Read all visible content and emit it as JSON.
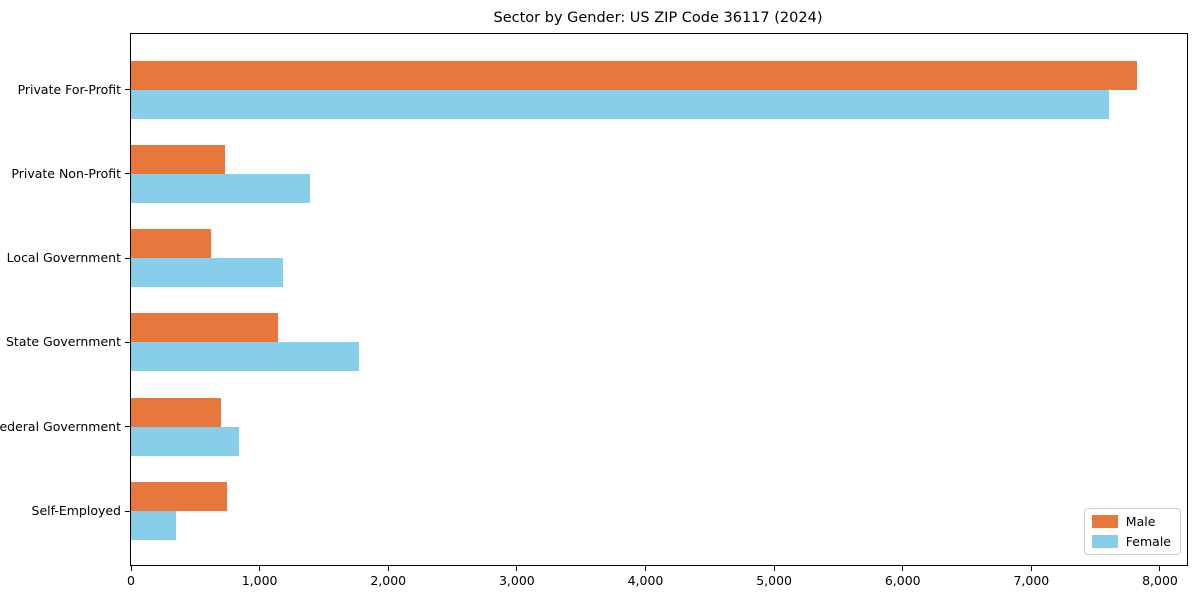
{
  "chart_data": {
    "type": "bar",
    "orientation": "horizontal",
    "title": "Sector by Gender: US ZIP Code 36117 (2024)",
    "categories": [
      "Private For-Profit",
      "Private Non-Profit",
      "Local Government",
      "State Government",
      "Federal Government",
      "Self-Employed"
    ],
    "series": [
      {
        "name": "Male",
        "color": "#e8773d",
        "values": [
          7820,
          730,
          620,
          1140,
          700,
          750
        ]
      },
      {
        "name": "Female",
        "color": "#87ceeb",
        "values": [
          7600,
          1390,
          1180,
          1770,
          840,
          350
        ]
      }
    ],
    "xlim": [
      0,
      8210
    ],
    "x_ticks": [
      0,
      1000,
      2000,
      3000,
      4000,
      5000,
      6000,
      7000,
      8000
    ],
    "x_tick_labels": [
      "0",
      "1,000",
      "2,000",
      "3,000",
      "4,000",
      "5,000",
      "6,000",
      "7,000",
      "8,000"
    ],
    "xlabel": "",
    "ylabel": "",
    "grid": false,
    "legend": {
      "position": "lower right",
      "entries": [
        "Male",
        "Female"
      ]
    }
  }
}
